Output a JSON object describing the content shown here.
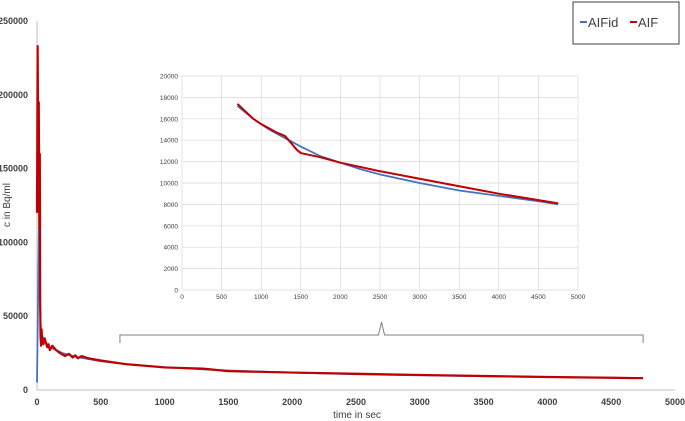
{
  "chart_data": [
    {
      "type": "line",
      "id": "main",
      "xlabel": "time in sec",
      "ylabel": "c in Bq/ml",
      "xlim": [
        0,
        5000
      ],
      "ylim": [
        0,
        250000
      ],
      "xticks": [
        0,
        500,
        1000,
        1500,
        2000,
        2500,
        3000,
        3500,
        4000,
        4500,
        5000
      ],
      "yticks": [
        0,
        50000,
        100000,
        150000,
        200000,
        250000
      ],
      "grid": false,
      "legend": {
        "placement": "top-right",
        "entries": [
          "AIFid",
          "AIF"
        ]
      },
      "series": [
        {
          "name": "AIFid",
          "color": "#4472c4",
          "points": [
            [
              0,
              5000
            ],
            [
              8,
              60000
            ],
            [
              15,
              110000
            ],
            [
              20,
              80000
            ],
            [
              25,
              55000
            ],
            [
              30,
              42000
            ],
            [
              40,
              37000
            ],
            [
              60,
              33000
            ],
            [
              100,
              29000
            ],
            [
              200,
              25000
            ],
            [
              300,
              22500
            ],
            [
              400,
              21000
            ],
            [
              500,
              19500
            ],
            [
              700,
              17500
            ],
            [
              1000,
              15500
            ],
            [
              1300,
              14000
            ],
            [
              1500,
              13200
            ],
            [
              2000,
              11800
            ],
            [
              2500,
              10700
            ],
            [
              3000,
              9900
            ],
            [
              3500,
              9300
            ],
            [
              4000,
              8800
            ],
            [
              4500,
              8300
            ],
            [
              4750,
              8000
            ]
          ]
        },
        {
          "name": "AIF",
          "color": "#c00000",
          "points": [
            [
              0,
              120000
            ],
            [
              5,
              233000
            ],
            [
              10,
              150000
            ],
            [
              14,
              195000
            ],
            [
              18,
              110000
            ],
            [
              22,
              160000
            ],
            [
              25,
              60000
            ],
            [
              28,
              36000
            ],
            [
              32,
              30000
            ],
            [
              36,
              41000
            ],
            [
              40,
              33000
            ],
            [
              50,
              31000
            ],
            [
              60,
              35000
            ],
            [
              70,
              32000
            ],
            [
              80,
              29000
            ],
            [
              90,
              31000
            ],
            [
              100,
              27000
            ],
            [
              120,
              30000
            ],
            [
              150,
              27000
            ],
            [
              180,
              25000
            ],
            [
              200,
              24000
            ],
            [
              220,
              23000
            ],
            [
              250,
              24500
            ],
            [
              280,
              22000
            ],
            [
              300,
              23500
            ],
            [
              320,
              21500
            ],
            [
              350,
              23000
            ],
            [
              400,
              21500
            ],
            [
              500,
              20000
            ],
            [
              700,
              17500
            ],
            [
              1000,
              15300
            ],
            [
              1300,
              14500
            ],
            [
              1500,
              12800
            ],
            [
              2000,
              11800
            ],
            [
              2500,
              11000
            ],
            [
              3000,
              10200
            ],
            [
              3500,
              9500
            ],
            [
              4000,
              8800
            ],
            [
              4500,
              8300
            ],
            [
              4750,
              8000
            ]
          ]
        }
      ]
    },
    {
      "type": "line",
      "id": "inset",
      "xlim": [
        0,
        5000
      ],
      "ylim": [
        0,
        20000
      ],
      "xticks": [
        0,
        500,
        1000,
        1500,
        2000,
        2500,
        3000,
        3500,
        4000,
        4500,
        5000
      ],
      "yticks": [
        0,
        2000,
        4000,
        6000,
        8000,
        10000,
        12000,
        14000,
        16000,
        18000,
        20000
      ],
      "grid": true,
      "series": [
        {
          "name": "AIFid",
          "color": "#4472c4",
          "points": [
            [
              700,
              17200
            ],
            [
              800,
              16600
            ],
            [
              900,
              16000
            ],
            [
              1000,
              15500
            ],
            [
              1100,
              15000
            ],
            [
              1200,
              14600
            ],
            [
              1300,
              14200
            ],
            [
              1400,
              13800
            ],
            [
              1500,
              13400
            ],
            [
              1750,
              12500
            ],
            [
              2000,
              11900
            ],
            [
              2250,
              11300
            ],
            [
              2500,
              10800
            ],
            [
              3000,
              10000
            ],
            [
              3500,
              9300
            ],
            [
              4000,
              8800
            ],
            [
              4500,
              8300
            ],
            [
              4750,
              8000
            ]
          ]
        },
        {
          "name": "AIF",
          "color": "#c00000",
          "points": [
            [
              700,
              17400
            ],
            [
              800,
              16700
            ],
            [
              900,
              16000
            ],
            [
              1000,
              15500
            ],
            [
              1100,
              15100
            ],
            [
              1200,
              14700
            ],
            [
              1300,
              14400
            ],
            [
              1370,
              13800
            ],
            [
              1450,
              13100
            ],
            [
              1500,
              12800
            ],
            [
              1750,
              12400
            ],
            [
              2000,
              11900
            ],
            [
              2250,
              11500
            ],
            [
              2500,
              11100
            ],
            [
              3000,
              10400
            ],
            [
              3500,
              9700
            ],
            [
              4000,
              9000
            ],
            [
              4500,
              8400
            ],
            [
              4750,
              8100
            ]
          ]
        }
      ]
    }
  ]
}
